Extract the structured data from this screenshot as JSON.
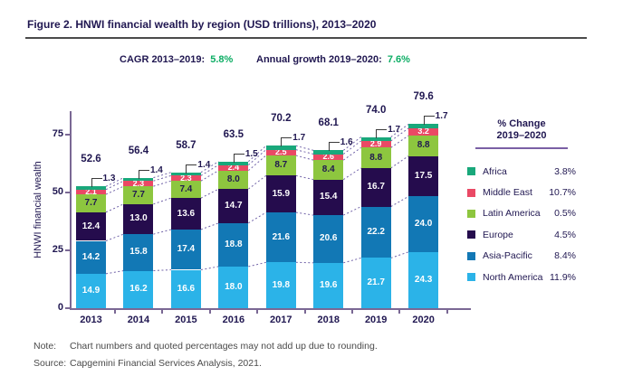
{
  "figure": {
    "title": "Figure 2. HNWI financial wealth by region (USD trillions), 2013–2020",
    "stats": [
      {
        "label": "CAGR 2013–2019:",
        "value": "5.8%"
      },
      {
        "label": "Annual growth 2019–2020:",
        "value": "7.6%"
      }
    ],
    "note_label": "Note:",
    "note_text": "Chart numbers and quoted percentages may not add up due to rounding.",
    "source_label": "Source:",
    "source_text": "Capgemini Financial Services Analysis, 2021."
  },
  "colors": {
    "accent_green": "#0cad64",
    "navy_text": "#201751",
    "axis_purple": "#7a6894",
    "connector_purple": "#7163a8",
    "legend_rule_purple": "#7a5fa5"
  },
  "chart_data": {
    "type": "bar",
    "stacked": true,
    "title": "HNWI financial wealth by region (USD trillions), 2013–2020",
    "xlabel": "",
    "ylabel": "HNWI financial wealth",
    "ylim": [
      0,
      85
    ],
    "yticks": [
      0,
      25,
      50,
      75
    ],
    "grid": false,
    "legend_position": "right",
    "categories": [
      "2013",
      "2014",
      "2015",
      "2016",
      "2017",
      "2018",
      "2019",
      "2020"
    ],
    "series": [
      {
        "name": "North America",
        "color": "#2bb3e8",
        "label_color": "#ffffff",
        "pct_change_2019_2020": "11.9%",
        "values": [
          14.9,
          16.2,
          16.6,
          18.0,
          19.8,
          19.6,
          21.7,
          24.3
        ]
      },
      {
        "name": "Asia-Pacific",
        "color": "#1278b5",
        "label_color": "#ffffff",
        "pct_change_2019_2020": "8.4%",
        "values": [
          14.2,
          15.8,
          17.4,
          18.8,
          21.6,
          20.6,
          22.2,
          24.0
        ]
      },
      {
        "name": "Europe",
        "color": "#250c4d",
        "label_color": "#ffffff",
        "pct_change_2019_2020": "4.5%",
        "values": [
          12.4,
          13.0,
          13.6,
          14.7,
          15.9,
          15.4,
          16.7,
          17.5
        ]
      },
      {
        "name": "Latin America",
        "color": "#8dc63f",
        "label_color": "#201751",
        "pct_change_2019_2020": "0.5%",
        "values": [
          7.7,
          7.7,
          7.4,
          8.0,
          8.7,
          8.4,
          8.8,
          8.8
        ]
      },
      {
        "name": "Middle East",
        "color": "#ea4965",
        "label_color": "#ffffff",
        "pct_change_2019_2020": "10.7%",
        "values": [
          2.1,
          2.3,
          2.3,
          2.4,
          2.5,
          2.6,
          2.9,
          3.2
        ]
      },
      {
        "name": "Africa",
        "color": "#19a87b",
        "label_color": "#201751",
        "pct_change_2019_2020": "3.8%",
        "values": [
          1.3,
          1.4,
          1.4,
          1.5,
          1.7,
          1.6,
          1.7,
          1.7
        ]
      }
    ],
    "totals": [
      "52.6",
      "56.4",
      "58.7",
      "63.5",
      "70.2",
      "68.1",
      "74.0",
      "79.6"
    ],
    "callout_series": "Africa",
    "legend": {
      "title_line1": "% Change",
      "title_line2": "2019–2020"
    }
  }
}
